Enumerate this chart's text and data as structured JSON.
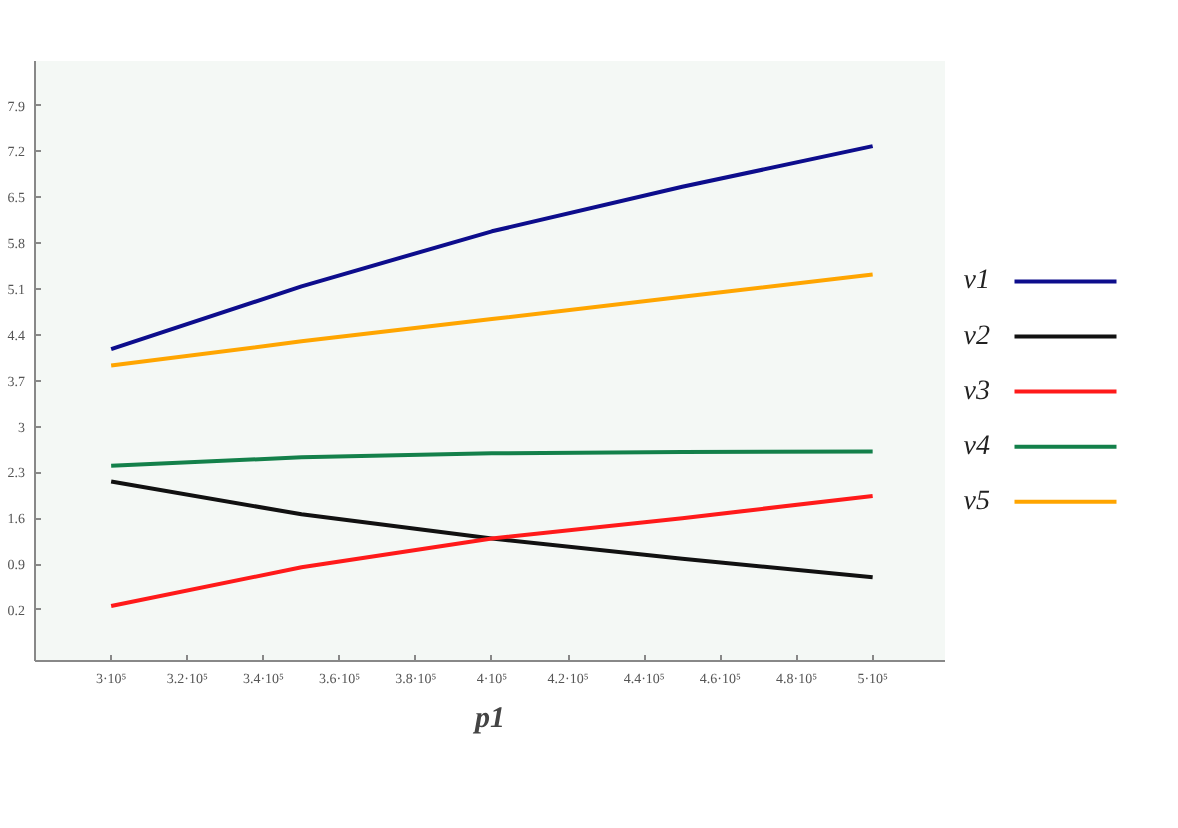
{
  "chart_data": {
    "type": "line",
    "xlabel": "p1",
    "x": [
      300000,
      350000,
      400000,
      450000,
      500000
    ],
    "series": [
      {
        "name": "v1",
        "color": "#0d0d8c",
        "values": [
          4.18,
          5.14,
          5.98,
          6.66,
          7.28
        ]
      },
      {
        "name": "v2",
        "color": "#111111",
        "values": [
          2.16,
          1.66,
          1.29,
          0.98,
          0.7
        ]
      },
      {
        "name": "v3",
        "color": "#ff1a1a",
        "values": [
          0.26,
          0.85,
          1.29,
          1.6,
          1.94
        ]
      },
      {
        "name": "v4",
        "color": "#13804a",
        "values": [
          2.4,
          2.53,
          2.59,
          2.61,
          2.62
        ]
      },
      {
        "name": "v5",
        "color": "#ffa500",
        "values": [
          3.93,
          4.3,
          4.64,
          4.98,
          5.32
        ]
      }
    ],
    "xlim": [
      280000,
      519000
    ],
    "ylim": [
      -0.58,
      8.58
    ],
    "xticks": [
      {
        "value": 300000,
        "label": "3·10⁵"
      },
      {
        "value": 320000,
        "label": "3.2·10⁵"
      },
      {
        "value": 340000,
        "label": "3.4·10⁵"
      },
      {
        "value": 360000,
        "label": "3.6·10⁵"
      },
      {
        "value": 380000,
        "label": "3.8·10⁵"
      },
      {
        "value": 400000,
        "label": "4·10⁵"
      },
      {
        "value": 420000,
        "label": "4.2·10⁵"
      },
      {
        "value": 440000,
        "label": "4.4·10⁵"
      },
      {
        "value": 460000,
        "label": "4.6·10⁵"
      },
      {
        "value": 480000,
        "label": "4.8·10⁵"
      },
      {
        "value": 500000,
        "label": "5·10⁵"
      }
    ],
    "yticks": [
      0.2,
      0.9,
      1.6,
      2.3,
      3,
      3.7,
      4.4,
      5.1,
      5.8,
      6.5,
      7.2,
      7.9
    ],
    "legend": "right",
    "grid": false,
    "marker": "none",
    "line_style": "solid"
  }
}
